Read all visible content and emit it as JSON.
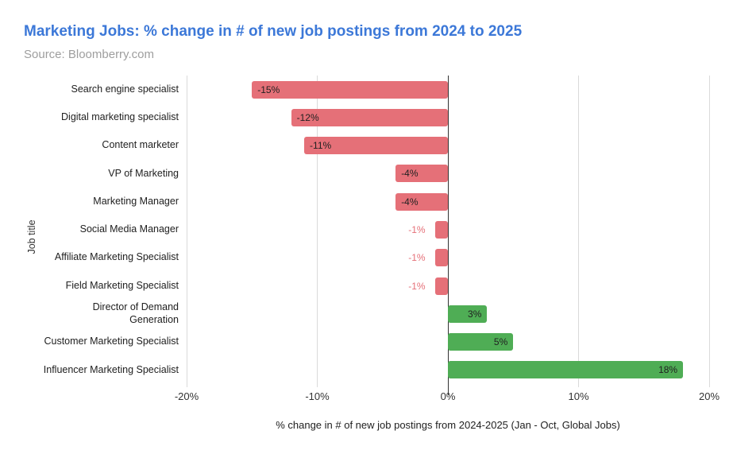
{
  "header": {
    "title": "Marketing Jobs: % change in # of new job postings from 2024 to 2025",
    "source": "Source: Bloomberry.com"
  },
  "chart_data": {
    "type": "bar",
    "orientation": "horizontal",
    "title": "Marketing Jobs: % change in # of new job postings from 2024 to 2025",
    "subtitle": "Source: Bloomberry.com",
    "categories": [
      "Search engine specialist",
      "Digital marketing specialist",
      "Content marketer",
      "VP of Marketing",
      "Marketing Manager",
      "Social Media Manager",
      "Affiliate Marketing Specialist",
      "Field Marketing Specialist",
      "Director of Demand\nGeneration",
      "Customer Marketing Specialist",
      "Influencer Marketing Specialist"
    ],
    "values": [
      -15,
      -12,
      -11,
      -4,
      -4,
      -1,
      -1,
      -1,
      3,
      5,
      18
    ],
    "bar_labels": [
      "-15%",
      "-12%",
      "-11%",
      "-4%",
      "-4%",
      "-1%",
      "-1%",
      "-1%",
      "3%",
      "5%",
      "18%"
    ],
    "xlabel": "% change in # of new job postings from 2024-2025 (Jan - Oct, Global Jobs)",
    "ylabel": "Job title",
    "xlim": [
      -20,
      20
    ],
    "x_ticks": [
      {
        "value": -20,
        "label": "-20%"
      },
      {
        "value": -10,
        "label": "-10%"
      },
      {
        "value": 0,
        "label": "0%"
      },
      {
        "value": 10,
        "label": "10%"
      },
      {
        "value": 20,
        "label": "20%"
      }
    ],
    "grid": true,
    "legend": "none",
    "colors": {
      "negative_bar": "#e57078",
      "positive_bar": "#4fad55",
      "title_text": "#3c78d8",
      "subtitle_text": "#9e9e9e",
      "axis_text": "#333333",
      "label_text": "#212121",
      "gridline": "#dadada",
      "zero_line": "#333333"
    }
  }
}
